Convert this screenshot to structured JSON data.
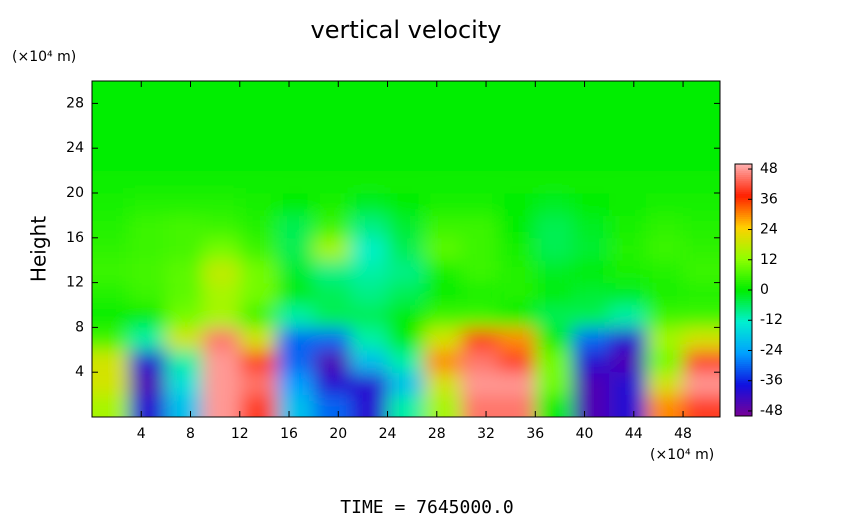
{
  "chart_data": {
    "type": "heatmap",
    "title": "vertical velocity",
    "y_label": "Height",
    "y_unit": "(×10⁴ m)",
    "x_unit": "(×10⁴ m)",
    "footer": "TIME = 7645000.0",
    "x": [
      1.5,
      4.5,
      7.5,
      10.5,
      13.5,
      16.5,
      19.5,
      22.5,
      25.5,
      28.5,
      31.5,
      34.5,
      37.5,
      40.5,
      43.5,
      46.5,
      49.5
    ],
    "y": [
      1,
      3,
      5,
      7,
      9,
      11,
      13,
      15,
      17,
      19,
      21,
      23,
      25,
      27,
      29
    ],
    "values": [
      [
        15,
        -40,
        -20,
        48,
        40,
        -20,
        -30,
        -40,
        -10,
        15,
        45,
        45,
        0,
        -45,
        -40,
        30,
        40
      ],
      [
        20,
        -45,
        -15,
        48,
        45,
        -25,
        -40,
        -40,
        -20,
        20,
        48,
        48,
        10,
        -45,
        -40,
        20,
        48
      ],
      [
        20,
        -40,
        -10,
        48,
        40,
        -30,
        -45,
        -20,
        -10,
        30,
        45,
        40,
        10,
        -40,
        -45,
        10,
        40
      ],
      [
        5,
        -10,
        20,
        45,
        20,
        -30,
        -30,
        -10,
        0,
        20,
        35,
        30,
        0,
        -30,
        -40,
        15,
        20
      ],
      [
        0,
        0,
        10,
        15,
        5,
        -10,
        -5,
        -5,
        0,
        5,
        5,
        0,
        -5,
        -5,
        -10,
        5,
        5
      ],
      [
        3,
        5,
        8,
        15,
        10,
        0,
        -5,
        -8,
        -5,
        0,
        2,
        3,
        0,
        -3,
        -2,
        2,
        3
      ],
      [
        5,
        6,
        8,
        18,
        10,
        -3,
        -8,
        -10,
        -8,
        2,
        5,
        3,
        -2,
        0,
        2,
        3,
        5
      ],
      [
        4,
        5,
        6,
        10,
        5,
        -5,
        15,
        -12,
        -5,
        8,
        5,
        2,
        -5,
        -3,
        3,
        5,
        4
      ],
      [
        3,
        5,
        6,
        5,
        3,
        -5,
        5,
        -8,
        -3,
        5,
        5,
        0,
        -5,
        -2,
        2,
        4,
        3
      ],
      [
        2,
        3,
        3,
        3,
        2,
        0,
        2,
        -2,
        0,
        2,
        2,
        0,
        -2,
        0,
        1,
        2,
        2
      ],
      [
        1,
        1,
        1,
        1,
        1,
        1,
        1,
        1,
        1,
        1,
        1,
        1,
        1,
        1,
        1,
        1,
        1
      ],
      [
        0,
        0,
        0,
        0,
        0,
        0,
        0,
        0,
        0,
        0,
        0,
        0,
        0,
        0,
        0,
        0,
        0
      ],
      [
        0,
        0,
        0,
        0,
        0,
        0,
        0,
        0,
        0,
        0,
        0,
        0,
        0,
        0,
        0,
        0,
        0
      ],
      [
        0,
        0,
        0,
        0,
        0,
        0,
        0,
        0,
        0,
        0,
        0,
        0,
        0,
        0,
        0,
        0,
        0
      ],
      [
        0,
        0,
        0,
        0,
        0,
        0,
        0,
        0,
        0,
        0,
        0,
        0,
        0,
        0,
        0,
        0,
        0
      ]
    ],
    "xlim": [
      0,
      51
    ],
    "ylim": [
      0,
      30
    ],
    "xticks": [
      4,
      8,
      12,
      16,
      20,
      24,
      28,
      32,
      36,
      40,
      44,
      48
    ],
    "yticks": [
      4,
      8,
      12,
      16,
      20,
      24,
      28
    ],
    "clim": [
      -50,
      50
    ],
    "colorbar_ticks": [
      48,
      36,
      24,
      12,
      0,
      -12,
      -24,
      -36,
      -48
    ],
    "colors": [
      "#7a0096",
      "#1010e0",
      "#00a0ff",
      "#00f0d0",
      "#00ee00",
      "#90ff00",
      "#ffd000",
      "#ff2000",
      "#ffb0b0"
    ]
  }
}
